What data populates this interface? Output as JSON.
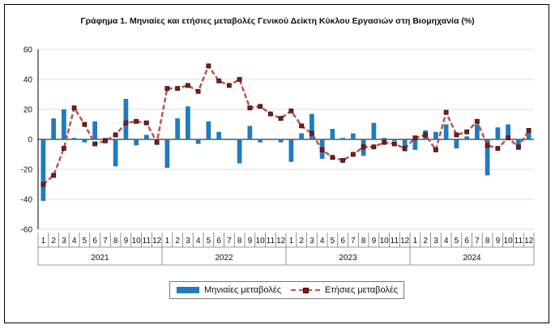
{
  "chart_data": {
    "type": "bar+line",
    "title": "Γράφημα 1. Μηνιαίες και ετήσιες μεταβολές  Γενικού Δείκτη Κύκλου Εργασιών στη Βιομηχανία (%)",
    "ylim": [
      -60,
      60
    ],
    "yticks": [
      -60,
      -40,
      -20,
      0,
      20,
      40,
      60
    ],
    "grid": true,
    "legend_position": "bottom",
    "months": [
      "1",
      "2",
      "3",
      "4",
      "5",
      "6",
      "7",
      "8",
      "9",
      "10",
      "11",
      "12",
      "1",
      "2",
      "3",
      "4",
      "5",
      "6",
      "7",
      "8",
      "9",
      "10",
      "11",
      "12",
      "1",
      "2",
      "3",
      "4",
      "5",
      "6",
      "7",
      "8",
      "9",
      "10",
      "11",
      "12",
      "1",
      "2",
      "3",
      "4",
      "5",
      "6",
      "7",
      "8",
      "9",
      "10",
      "11",
      "12"
    ],
    "years": [
      "2021",
      "2022",
      "2023",
      "2024"
    ],
    "series": [
      {
        "name": "Μηνιαίες μεταβολές",
        "type": "bar",
        "color": "#1f7bc1",
        "values": [
          -41,
          14,
          20,
          1,
          -2,
          12,
          1,
          -18,
          27,
          -4,
          3,
          -2,
          -19,
          14,
          22,
          -3,
          12,
          5,
          0,
          -16,
          9,
          -2,
          0,
          -2,
          -15,
          4,
          17,
          -13,
          7,
          1,
          4,
          -11,
          11,
          1,
          -1,
          -8,
          -7,
          6,
          5,
          10,
          -6,
          2,
          10,
          -24,
          8,
          10,
          -7,
          6
        ]
      },
      {
        "name": "Ετήσιες μεταβολές",
        "type": "line",
        "color": "#c0504d",
        "values": [
          -30,
          -24,
          -6,
          21,
          10,
          -3,
          -1,
          3,
          11,
          12,
          11,
          -2,
          34,
          34,
          36,
          32,
          49,
          39,
          36,
          40,
          21,
          22,
          17,
          14,
          19,
          9,
          4,
          -7,
          -12,
          -14,
          -10,
          -5,
          -5,
          -2,
          -3,
          -6,
          1,
          3,
          -7,
          18,
          3,
          5,
          12,
          -4,
          -6,
          1,
          -5,
          6
        ]
      }
    ]
  }
}
